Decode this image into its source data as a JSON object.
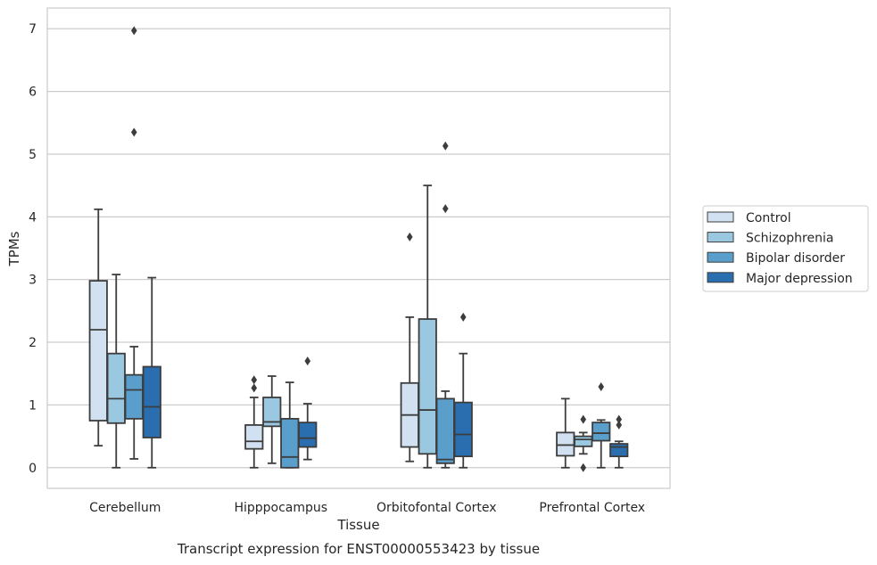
{
  "chart_data": {
    "type": "box",
    "xlabel": "Tissue",
    "ylabel": "TPMs",
    "caption": "Transcript expression for ENST00000553423 by tissue",
    "categories": [
      "Cerebellum",
      "Hipppocampus",
      "Orbitofontal Cortex",
      "Prefrontal Cortex"
    ],
    "ylim": [
      -0.33,
      7.33
    ],
    "yticks": [
      0,
      1,
      2,
      3,
      4,
      5,
      6,
      7
    ],
    "grid": true,
    "legend_position": "right",
    "series": [
      {
        "name": "Control",
        "color": "#d1e1f1",
        "boxes": [
          {
            "whislo": 0.35,
            "q1": 0.75,
            "med": 2.2,
            "q3": 2.98,
            "whishi": 4.12,
            "fliers": []
          },
          {
            "whislo": 0.0,
            "q1": 0.3,
            "med": 0.42,
            "q3": 0.68,
            "whishi": 1.12,
            "fliers": [
              1.27,
              1.4
            ]
          },
          {
            "whislo": 0.1,
            "q1": 0.33,
            "med": 0.84,
            "q3": 1.35,
            "whishi": 2.4,
            "fliers": [
              3.68
            ]
          },
          {
            "whislo": 0.0,
            "q1": 0.19,
            "med": 0.36,
            "q3": 0.56,
            "whishi": 1.1,
            "fliers": []
          }
        ]
      },
      {
        "name": "Schizophrenia",
        "color": "#9ac8e0",
        "boxes": [
          {
            "whislo": 0.0,
            "q1": 0.71,
            "med": 1.1,
            "q3": 1.82,
            "whishi": 3.08,
            "fliers": []
          },
          {
            "whislo": 0.07,
            "q1": 0.66,
            "med": 0.73,
            "q3": 1.12,
            "whishi": 1.46,
            "fliers": []
          },
          {
            "whislo": 0.0,
            "q1": 0.22,
            "med": 0.92,
            "q3": 2.37,
            "whishi": 4.5,
            "fliers": []
          },
          {
            "whislo": 0.22,
            "q1": 0.34,
            "med": 0.45,
            "q3": 0.5,
            "whishi": 0.56,
            "fliers": [
              0.77,
              0.0
            ]
          }
        ]
      },
      {
        "name": "Bipolar disorder",
        "color": "#5a9ecb",
        "boxes": [
          {
            "whislo": 0.14,
            "q1": 0.78,
            "med": 1.24,
            "q3": 1.48,
            "whishi": 1.93,
            "fliers": [
              5.35,
              6.97
            ]
          },
          {
            "whislo": 0.0,
            "q1": 0.0,
            "med": 0.17,
            "q3": 0.78,
            "whishi": 1.36,
            "fliers": []
          },
          {
            "whislo": 0.0,
            "q1": 0.07,
            "med": 0.13,
            "q3": 1.1,
            "whishi": 1.22,
            "fliers": [
              4.13,
              5.13
            ]
          },
          {
            "whislo": 0.0,
            "q1": 0.43,
            "med": 0.55,
            "q3": 0.72,
            "whishi": 0.76,
            "fliers": [
              1.29
            ]
          }
        ]
      },
      {
        "name": "Major depression",
        "color": "#2a6eaf",
        "boxes": [
          {
            "whislo": 0.0,
            "q1": 0.48,
            "med": 0.97,
            "q3": 1.61,
            "whishi": 3.03,
            "fliers": []
          },
          {
            "whislo": 0.13,
            "q1": 0.33,
            "med": 0.47,
            "q3": 0.72,
            "whishi": 1.02,
            "fliers": [
              1.7
            ]
          },
          {
            "whislo": 0.0,
            "q1": 0.18,
            "med": 0.53,
            "q3": 1.04,
            "whishi": 1.82,
            "fliers": [
              2.4
            ]
          },
          {
            "whislo": 0.0,
            "q1": 0.18,
            "med": 0.33,
            "q3": 0.38,
            "whishi": 0.42,
            "fliers": [
              0.68,
              0.77
            ]
          }
        ]
      }
    ]
  }
}
